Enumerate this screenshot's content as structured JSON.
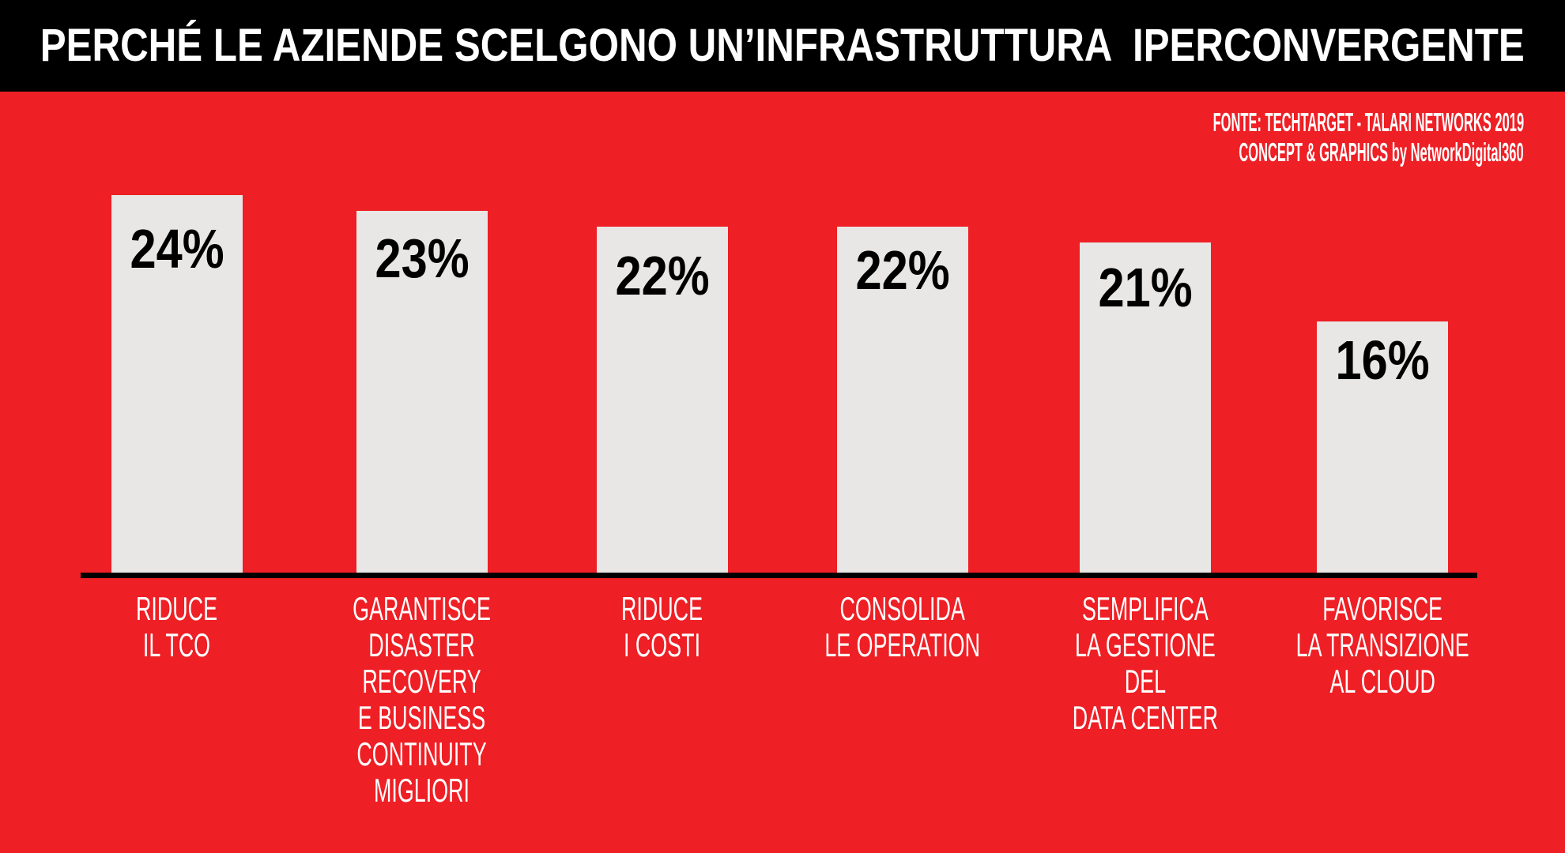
{
  "header": {
    "title": "PERCHÉ LE AZIENDE SCELGONO UN’INFRASTRUTTURA  IPERCONVERGENTE"
  },
  "source": {
    "line1": "FONTE: TECHTARGET - TALARI NETWORKS 2019",
    "line2": "CONCEPT & GRAPHICS by NetworkDigital360"
  },
  "colors": {
    "background": "#EE1F25",
    "header_background": "#000000",
    "title_text": "#FFFFFF",
    "bar_fill": "#E8E7E5",
    "value_text": "#000000",
    "axis_line": "#000000",
    "category_text": "#FFFFFF"
  },
  "chart_data": {
    "type": "bar",
    "title": "PERCHÉ LE AZIENDE SCELGONO UN’INFRASTRUTTURA IPERCONVERGENTE",
    "orientation": "vertical",
    "unit": "%",
    "categories": [
      "RIDUCE\nIL TCO",
      "GARANTISCE\nDISASTER\nRECOVERY\nE BUSINESS\nCONTINUITY\nMIGLIORI",
      "RIDUCE\nI COSTI",
      "CONSOLIDA\nLE OPERATION",
      "SEMPLIFICA\nLA GESTIONE\nDEL\nDATA CENTER",
      "FAVORISCE\nLA TRANSIZIONE\nAL CLOUD"
    ],
    "values": [
      24,
      23,
      22,
      22,
      21,
      16
    ],
    "value_labels": [
      "24%",
      "23%",
      "22%",
      "22%",
      "21%",
      "16%"
    ],
    "ylim": [
      0,
      25
    ],
    "grid": false,
    "legend": false
  }
}
